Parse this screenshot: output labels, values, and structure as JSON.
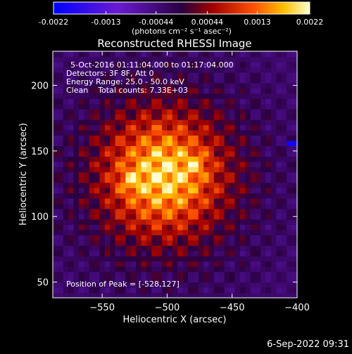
{
  "chart_data": {
    "type": "heatmap",
    "title": "Reconstructed RHESSI Image",
    "xlabel": "Heliocentric X (arcsec)",
    "ylabel": "Heliocentric Y (arcsec)",
    "xlim": [
      -588,
      -400
    ],
    "ylim": [
      38,
      226
    ],
    "xticks": [
      -550,
      -500,
      -450,
      -400
    ],
    "yticks": [
      50,
      100,
      150,
      200
    ],
    "colorbar": {
      "min": -0.0022,
      "max": 0.0022,
      "ticks": [
        "-0.0022",
        "-0.0013",
        "-0.00044",
        "0.00044",
        "0.0013",
        "0.0022"
      ],
      "units_label": "(photons cm⁻² s⁻¹ asec⁻²)"
    },
    "annotations": {
      "time_range": "5-Oct-2016 01:11:04.000 to 01:17:04.000",
      "detectors": "Detectors: 3F 8F, Att 0",
      "energy_range": "Energy Range: 25.0 - 50.0 keV",
      "method_counts": "Clean    Total counts: 7.33E+03",
      "peak": "Position of Peak = [-528,127]"
    },
    "source_peak": {
      "x": -528,
      "y": 127
    }
  },
  "footer": {
    "date": "6-Sep-2022 09:31"
  }
}
